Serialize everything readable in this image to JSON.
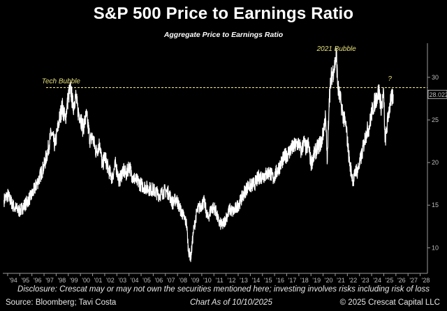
{
  "title": "S&P 500 Price to Earnings Ratio",
  "subtitle": "Aggregate Price to Earnings Ratio",
  "footer": {
    "disclosure": "Disclosure: Crescat may or may not own the securities mentioned here; investing involves risks including risk of loss",
    "source": "Source: Bloomberg; Tavi Costa",
    "as_of": "Chart As of 10/10/2025",
    "copyright": "© 2025 Crescat Capital LLC"
  },
  "chart_data": {
    "type": "line",
    "title": "S&P 500 Price to Earnings Ratio",
    "subtitle": "Aggregate Price to Earnings Ratio",
    "xlabel": "",
    "ylabel": "",
    "x_tick_labels": [
      "'94",
      "'95",
      "'96",
      "'97",
      "'98",
      "'99",
      "'00",
      "'01",
      "'02",
      "'03",
      "'04",
      "'05",
      "'06",
      "'07",
      "'08",
      "'09",
      "'10",
      "'11",
      "'12",
      "'13",
      "'14",
      "'15",
      "'16",
      "'17",
      "'18",
      "'19",
      "'20",
      "'21",
      "'22",
      "'23",
      "'24",
      "'25",
      "'26",
      "'27",
      "'28"
    ],
    "y_ticks": [
      10,
      15,
      20,
      25,
      30
    ],
    "xlim": [
      1993.6,
      2028.6
    ],
    "ylim": [
      7,
      34
    ],
    "grid": false,
    "y_axis_position": "right",
    "last_value_label": "28.0224",
    "reference_line": {
      "y": 28.8,
      "style": "dashed",
      "color": "#e6e07a"
    },
    "annotations": [
      {
        "text": "Tech Bubble",
        "x": 1998.4,
        "y": 28.8
      },
      {
        "text": "2021 Bubble",
        "x": 2021.1,
        "y": 32.6
      },
      {
        "text": "?",
        "x": 2025.5,
        "y": 29.5
      }
    ],
    "series": [
      {
        "color": "#ffffff",
        "x": [
          1993.7,
          1994.0,
          1994.5,
          1995.0,
          1995.5,
          1996.0,
          1996.5,
          1997.0,
          1997.3,
          1997.6,
          1997.9,
          1998.2,
          1998.5,
          1998.75,
          1999.0,
          1999.2,
          1999.4,
          1999.6,
          1999.8,
          2000.0,
          2000.2,
          2000.5,
          2000.8,
          2001.0,
          2001.3,
          2001.6,
          2001.8,
          2002.0,
          2002.3,
          2002.6,
          2002.9,
          2003.2,
          2003.5,
          2003.8,
          2004.0,
          2004.3,
          2004.6,
          2005.0,
          2005.5,
          2006.0,
          2006.5,
          2007.0,
          2007.3,
          2007.6,
          2007.9,
          2008.2,
          2008.5,
          2008.75,
          2008.9,
          2009.1,
          2009.3,
          2009.6,
          2009.9,
          2010.2,
          2010.5,
          2010.8,
          2011.1,
          2011.4,
          2011.7,
          2012.0,
          2012.3,
          2012.6,
          2012.9,
          2013.2,
          2013.5,
          2013.8,
          2014.1,
          2014.4,
          2014.7,
          2015.0,
          2015.3,
          2015.6,
          2015.9,
          2016.2,
          2016.5,
          2016.8,
          2017.1,
          2017.4,
          2017.7,
          2018.0,
          2018.2,
          2018.4,
          2018.6,
          2018.8,
          2019.0,
          2019.3,
          2019.6,
          2019.9,
          2020.1,
          2020.2,
          2020.35,
          2020.5,
          2020.7,
          2020.9,
          2021.0,
          2021.1,
          2021.2,
          2021.35,
          2021.5,
          2021.7,
          2021.9,
          2022.0,
          2022.2,
          2022.4,
          2022.5,
          2022.7,
          2022.8,
          2023.0,
          2023.2,
          2023.4,
          2023.6,
          2023.8,
          2024.0,
          2024.2,
          2024.4,
          2024.6,
          2024.8,
          2025.0,
          2025.1,
          2025.25,
          2025.4,
          2025.6,
          2025.78
        ],
        "values": [
          15.6,
          16.2,
          14.8,
          14.3,
          15.2,
          16.2,
          17.8,
          19.6,
          21.3,
          23.5,
          22.0,
          24.6,
          26.6,
          25.0,
          27.8,
          28.6,
          26.5,
          27.9,
          26.0,
          25.4,
          24.0,
          25.5,
          22.6,
          23.0,
          21.2,
          22.3,
          19.5,
          20.8,
          19.2,
          18.2,
          19.8,
          17.8,
          19.1,
          18.6,
          19.7,
          18.3,
          17.9,
          17.4,
          17.0,
          16.8,
          16.2,
          16.7,
          16.4,
          15.2,
          15.8,
          14.6,
          13.7,
          12.8,
          9.7,
          8.8,
          11.8,
          14.3,
          14.9,
          15.4,
          13.4,
          14.7,
          14.6,
          13.0,
          12.6,
          13.5,
          14.5,
          14.2,
          14.8,
          15.5,
          16.5,
          17.2,
          17.3,
          17.6,
          18.3,
          18.4,
          18.6,
          18.9,
          18.1,
          19.0,
          19.8,
          20.6,
          21.1,
          21.6,
          22.0,
          22.3,
          21.2,
          22.5,
          21.6,
          22.2,
          19.8,
          21.1,
          21.9,
          22.5,
          24.5,
          25.3,
          20.1,
          27.5,
          30.2,
          31.0,
          31.8,
          32.8,
          29.0,
          27.8,
          26.8,
          25.2,
          24.2,
          22.6,
          19.8,
          18.4,
          17.8,
          19.2,
          18.9,
          19.8,
          21.0,
          22.5,
          23.6,
          24.2,
          25.8,
          26.9,
          27.6,
          28.4,
          26.5,
          28.0,
          22.4,
          24.0,
          25.9,
          27.2,
          28.0
        ]
      }
    ]
  }
}
